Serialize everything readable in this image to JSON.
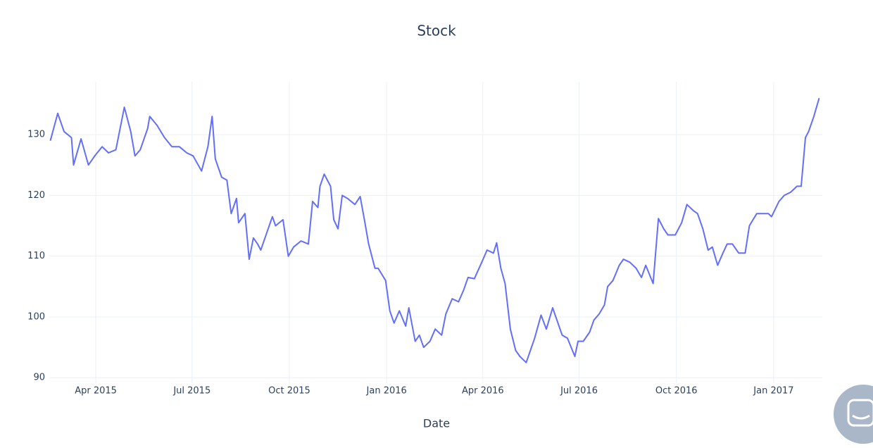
{
  "chart_data": {
    "type": "line",
    "title": "Stock",
    "x_label": "Date",
    "color": "#636efa",
    "grid": true,
    "x": [
      "2015-02-17",
      "2015-02-24",
      "2015-03-02",
      "2015-03-09",
      "2015-03-11",
      "2015-03-18",
      "2015-03-25",
      "2015-03-31",
      "2015-04-07",
      "2015-04-13",
      "2015-04-20",
      "2015-04-28",
      "2015-05-04",
      "2015-05-08",
      "2015-05-13",
      "2015-05-20",
      "2015-05-22",
      "2015-05-29",
      "2015-06-05",
      "2015-06-12",
      "2015-06-19",
      "2015-06-26",
      "2015-07-02",
      "2015-07-10",
      "2015-07-16",
      "2015-07-20",
      "2015-07-23",
      "2015-07-29",
      "2015-08-03",
      "2015-08-07",
      "2015-08-12",
      "2015-08-14",
      "2015-08-20",
      "2015-08-24",
      "2015-08-28",
      "2015-09-01",
      "2015-09-04",
      "2015-09-10",
      "2015-09-15",
      "2015-09-18",
      "2015-09-25",
      "2015-09-30",
      "2015-10-05",
      "2015-10-12",
      "2015-10-19",
      "2015-10-23",
      "2015-10-28",
      "2015-10-30",
      "2015-11-03",
      "2015-11-09",
      "2015-11-12",
      "2015-11-16",
      "2015-11-20",
      "2015-11-25",
      "2015-12-02",
      "2015-12-07",
      "2015-12-11",
      "2015-12-15",
      "2015-12-21",
      "2015-12-24",
      "2015-12-31",
      "2016-01-04",
      "2016-01-08",
      "2016-01-13",
      "2016-01-19",
      "2016-01-22",
      "2016-01-28",
      "2016-02-01",
      "2016-02-05",
      "2016-02-11",
      "2016-02-16",
      "2016-02-22",
      "2016-02-26",
      "2016-03-03",
      "2016-03-09",
      "2016-03-14",
      "2016-03-18",
      "2016-03-24",
      "2016-03-31",
      "2016-04-05",
      "2016-04-11",
      "2016-04-14",
      "2016-04-18",
      "2016-04-22",
      "2016-04-27",
      "2016-05-02",
      "2016-05-06",
      "2016-05-12",
      "2016-05-16",
      "2016-05-20",
      "2016-05-26",
      "2016-05-31",
      "2016-06-06",
      "2016-06-10",
      "2016-06-15",
      "2016-06-20",
      "2016-06-27",
      "2016-06-30",
      "2016-07-05",
      "2016-07-11",
      "2016-07-15",
      "2016-07-20",
      "2016-07-25",
      "2016-07-28",
      "2016-08-02",
      "2016-08-08",
      "2016-08-12",
      "2016-08-18",
      "2016-08-24",
      "2016-08-29",
      "2016-09-02",
      "2016-09-09",
      "2016-09-14",
      "2016-09-19",
      "2016-09-23",
      "2016-09-30",
      "2016-10-06",
      "2016-10-11",
      "2016-10-17",
      "2016-10-21",
      "2016-10-26",
      "2016-10-31",
      "2016-11-04",
      "2016-11-09",
      "2016-11-14",
      "2016-11-18",
      "2016-11-23",
      "2016-11-29",
      "2016-12-05",
      "2016-12-09",
      "2016-12-16",
      "2016-12-21",
      "2016-12-27",
      "2016-12-30",
      "2017-01-06",
      "2017-01-11",
      "2017-01-17",
      "2017-01-23",
      "2017-01-27",
      "2017-01-31",
      "2017-02-03",
      "2017-02-08",
      "2017-02-13"
    ],
    "values": [
      129,
      133.5,
      130.5,
      129.5,
      125,
      129.3,
      125,
      126.5,
      128,
      127,
      127.5,
      134.5,
      130.5,
      126.5,
      127.5,
      131,
      133,
      131.5,
      129.5,
      128,
      128,
      127,
      126.5,
      124,
      128,
      133,
      126,
      123,
      122.5,
      117,
      119.5,
      115.5,
      117,
      109.5,
      113,
      112,
      111,
      114,
      116.5,
      115,
      116,
      110,
      111.5,
      112.5,
      112,
      119,
      118,
      121.5,
      123.5,
      121.5,
      116,
      114.5,
      120,
      119.5,
      118.5,
      119.8,
      116,
      112,
      108,
      108,
      106,
      101,
      99,
      101,
      98.5,
      101.5,
      96,
      97,
      95,
      96,
      98,
      97,
      100.5,
      103,
      102.5,
      104.5,
      106.5,
      106.3,
      109,
      111,
      110.5,
      112.2,
      108,
      105.5,
      98,
      94.5,
      93.5,
      92.5,
      94.5,
      96.5,
      100.3,
      98,
      101.5,
      99.5,
      97,
      96.5,
      93.5,
      96,
      96,
      97.5,
      99.5,
      100.5,
      102,
      105,
      106,
      108.5,
      109.5,
      109,
      108,
      106.5,
      108.5,
      105.5,
      116.2,
      114.5,
      113.5,
      113.5,
      115.5,
      118.5,
      117.5,
      117,
      114.5,
      111,
      111.5,
      108.5,
      110.5,
      112,
      112,
      110.5,
      110.5,
      115,
      117,
      117,
      117,
      116.5,
      119,
      120,
      120.5,
      121.5,
      121.5,
      129.5,
      130.5,
      133,
      136
    ],
    "xlim": [
      "2015-02-16",
      "2017-02-16"
    ],
    "xticks": [
      {
        "value": "2015-04-01",
        "label": "Apr 2015"
      },
      {
        "value": "2015-07-01",
        "label": "Jul 2015"
      },
      {
        "value": "2015-10-01",
        "label": "Oct 2015"
      },
      {
        "value": "2016-01-01",
        "label": "Jan 2016"
      },
      {
        "value": "2016-04-01",
        "label": "Apr 2016"
      },
      {
        "value": "2016-07-01",
        "label": "Jul 2016"
      },
      {
        "value": "2016-10-01",
        "label": "Oct 2016"
      },
      {
        "value": "2017-01-01",
        "label": "Jan 2017"
      }
    ],
    "ylim": [
      89.1,
      138.7
    ],
    "yticks": [
      90,
      100,
      110,
      120,
      130
    ]
  }
}
